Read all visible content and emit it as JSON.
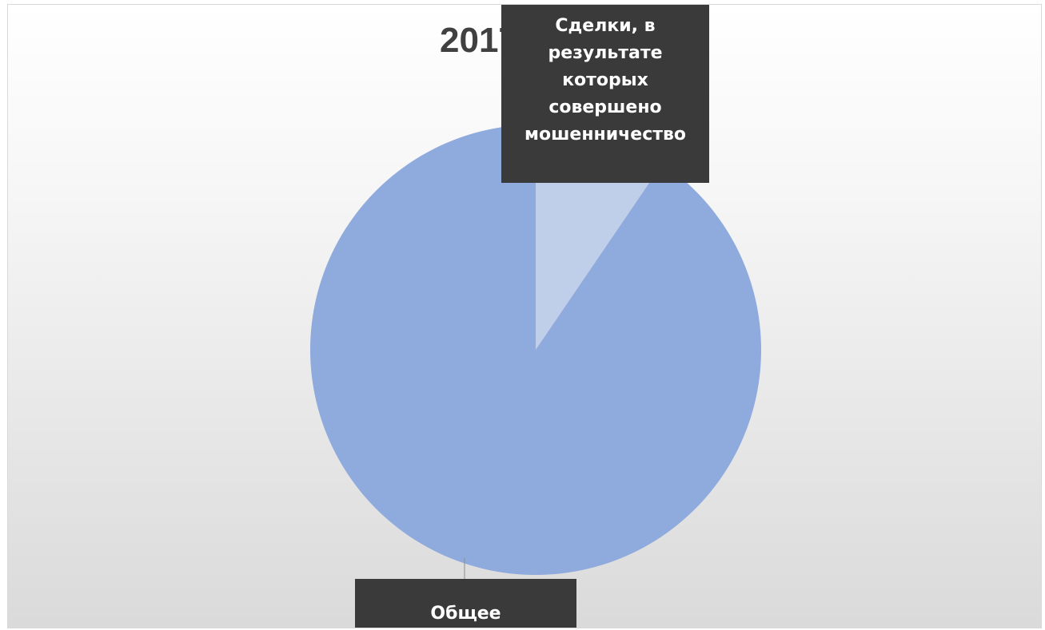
{
  "chart_data": {
    "type": "pie",
    "title": "2017",
    "categories": [
      "Общее",
      "Сделки, в результате которых совершено мошенничество"
    ],
    "values": [
      90.5,
      9.5
    ],
    "colors": [
      "#8faadc",
      "#c0cfe9"
    ],
    "data_labels": [
      {
        "category_index": 0,
        "lines": [
          "Общее"
        ]
      },
      {
        "category_index": 1,
        "lines": [
          "Сделки, в",
          "результате",
          "которых",
          "совершено",
          "мошенничество"
        ]
      }
    ],
    "legend": "none"
  }
}
